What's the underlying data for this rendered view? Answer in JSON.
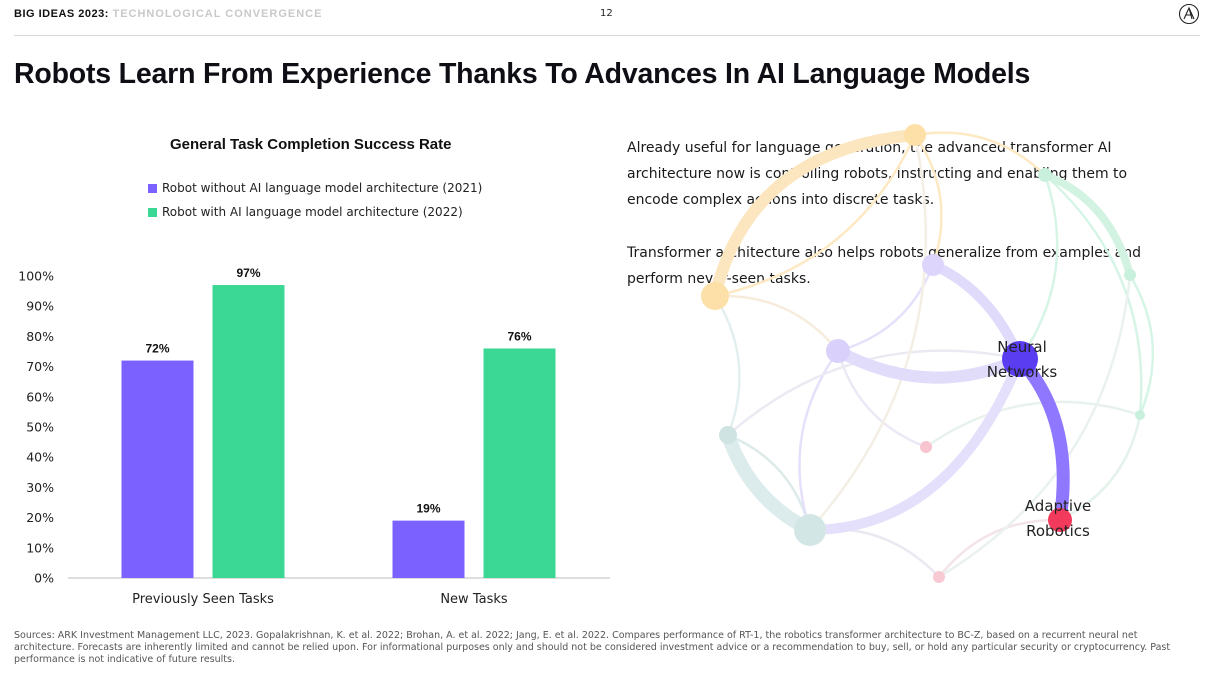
{
  "header": {
    "brand_bold": "BIG IDEAS 2023:",
    "brand_light": "TECHNOLOGICAL CONVERGENCE",
    "page_number": "12",
    "logo_icon": "ark-logo-icon"
  },
  "title": "Robots Learn From Experience Thanks To Advances In AI Language Models",
  "chart_data": {
    "type": "bar",
    "title": "General Task Completion Success Rate",
    "categories": [
      "Previously Seen Tasks",
      "New Tasks"
    ],
    "series": [
      {
        "name": "Robot without AI language model architecture (2021)",
        "values": [
          72,
          19
        ],
        "labels": [
          "72%",
          "19%"
        ],
        "color": "#7b61ff"
      },
      {
        "name": "Robot with AI language model architecture (2022)",
        "values": [
          97,
          76
        ],
        "labels": [
          "97%",
          "76%"
        ],
        "color": "#3ad894"
      }
    ],
    "ylim": [
      0,
      100
    ],
    "yticks": [
      "0%",
      "10%",
      "20%",
      "30%",
      "40%",
      "50%",
      "60%",
      "70%",
      "80%",
      "90%",
      "100%"
    ],
    "xlabel": "",
    "ylabel": "",
    "grid": false,
    "legend_position": "top"
  },
  "text": {
    "paragraph1": "Already useful for language generation, the advanced transformer AI architecture now is controlling robots, instructing and enabling them to encode complex actions into discrete tasks.",
    "paragraph2": "Transformer architecture also helps robots generalize from examples and perform never-seen tasks."
  },
  "network": {
    "label1_line1": "Neural",
    "label1_line2": "Networks",
    "label2_line1": "Adaptive",
    "label2_line2": "Robotics",
    "highlight_color": "#7b61ff",
    "node_color_neural": "#5a3df0",
    "node_color_robotics": "#f23a5c"
  },
  "footer": "Sources: ARK Investment Management LLC, 2023. Gopalakrishnan, K. et al. 2022; Brohan, A. et al. 2022; Jang, E. et al. 2022. Compares performance of RT-1, the robotics transformer architecture to BC-Z, based on a recurrent neural net architecture. Forecasts are inherently limited and cannot be relied upon. For informational purposes only and should not be considered investment advice or a recommendation to buy, sell, or hold any particular security or cryptocurrency. Past performance is not indicative of future results."
}
